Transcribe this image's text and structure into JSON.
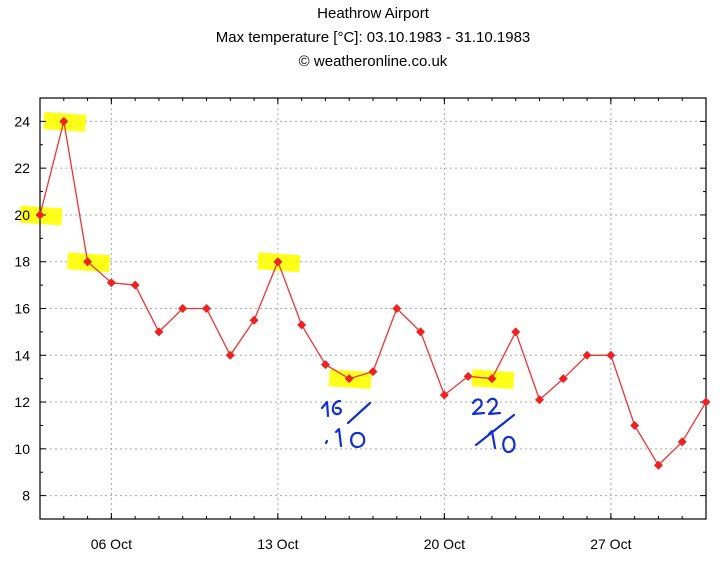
{
  "header": {
    "title": "Heathrow Airport",
    "subtitle": "Max temperature [°C]: 03.10.1983 - 31.10.1983",
    "copyright": "© weatheronline.co.uk"
  },
  "colors": {
    "series": "#ee3333",
    "marker": "#ee2222",
    "highlight": "#ffff00",
    "annotation_ink": "#1030d0",
    "grid": "#aaaaaa"
  },
  "chart_data": {
    "type": "line",
    "title": "Heathrow Airport",
    "subtitle": "Max temperature [°C]: 03.10.1983 - 31.10.1983",
    "xlabel": "",
    "ylabel": "",
    "x_dates": [
      "1983-10-03",
      "1983-10-04",
      "1983-10-05",
      "1983-10-06",
      "1983-10-07",
      "1983-10-08",
      "1983-10-09",
      "1983-10-10",
      "1983-10-11",
      "1983-10-12",
      "1983-10-13",
      "1983-10-14",
      "1983-10-15",
      "1983-10-16",
      "1983-10-17",
      "1983-10-18",
      "1983-10-19",
      "1983-10-20",
      "1983-10-21",
      "1983-10-22",
      "1983-10-23",
      "1983-10-24",
      "1983-10-25",
      "1983-10-26",
      "1983-10-27",
      "1983-10-28",
      "1983-10-29",
      "1983-10-30",
      "1983-10-31"
    ],
    "series": [
      {
        "values": [
          20,
          24,
          18,
          17.1,
          17,
          15,
          16,
          16,
          14,
          15.5,
          18,
          15.3,
          13.6,
          13,
          13.3,
          16,
          15,
          12.3,
          13.1,
          13,
          15,
          12.1,
          13,
          14,
          14,
          11,
          9.3,
          10.3,
          12
        ]
      }
    ],
    "xlim": [
      "1983-10-03",
      "1983-10-31"
    ],
    "ylim": [
      7,
      25
    ],
    "yticks": [
      8,
      10,
      12,
      14,
      16,
      18,
      20,
      22,
      24
    ],
    "xticks": [
      {
        "date": "1983-10-06",
        "label": "06 Oct"
      },
      {
        "date": "1983-10-13",
        "label": "13 Oct"
      },
      {
        "date": "1983-10-20",
        "label": "20 Oct"
      },
      {
        "date": "1983-10-27",
        "label": "27 Oct"
      }
    ],
    "grid": true,
    "highlighted_dates": [
      "1983-10-03",
      "1983-10-04",
      "1983-10-05",
      "1983-10-13",
      "1983-10-16",
      "1983-10-22"
    ],
    "annotations": [
      "16/10",
      "22/10"
    ]
  }
}
